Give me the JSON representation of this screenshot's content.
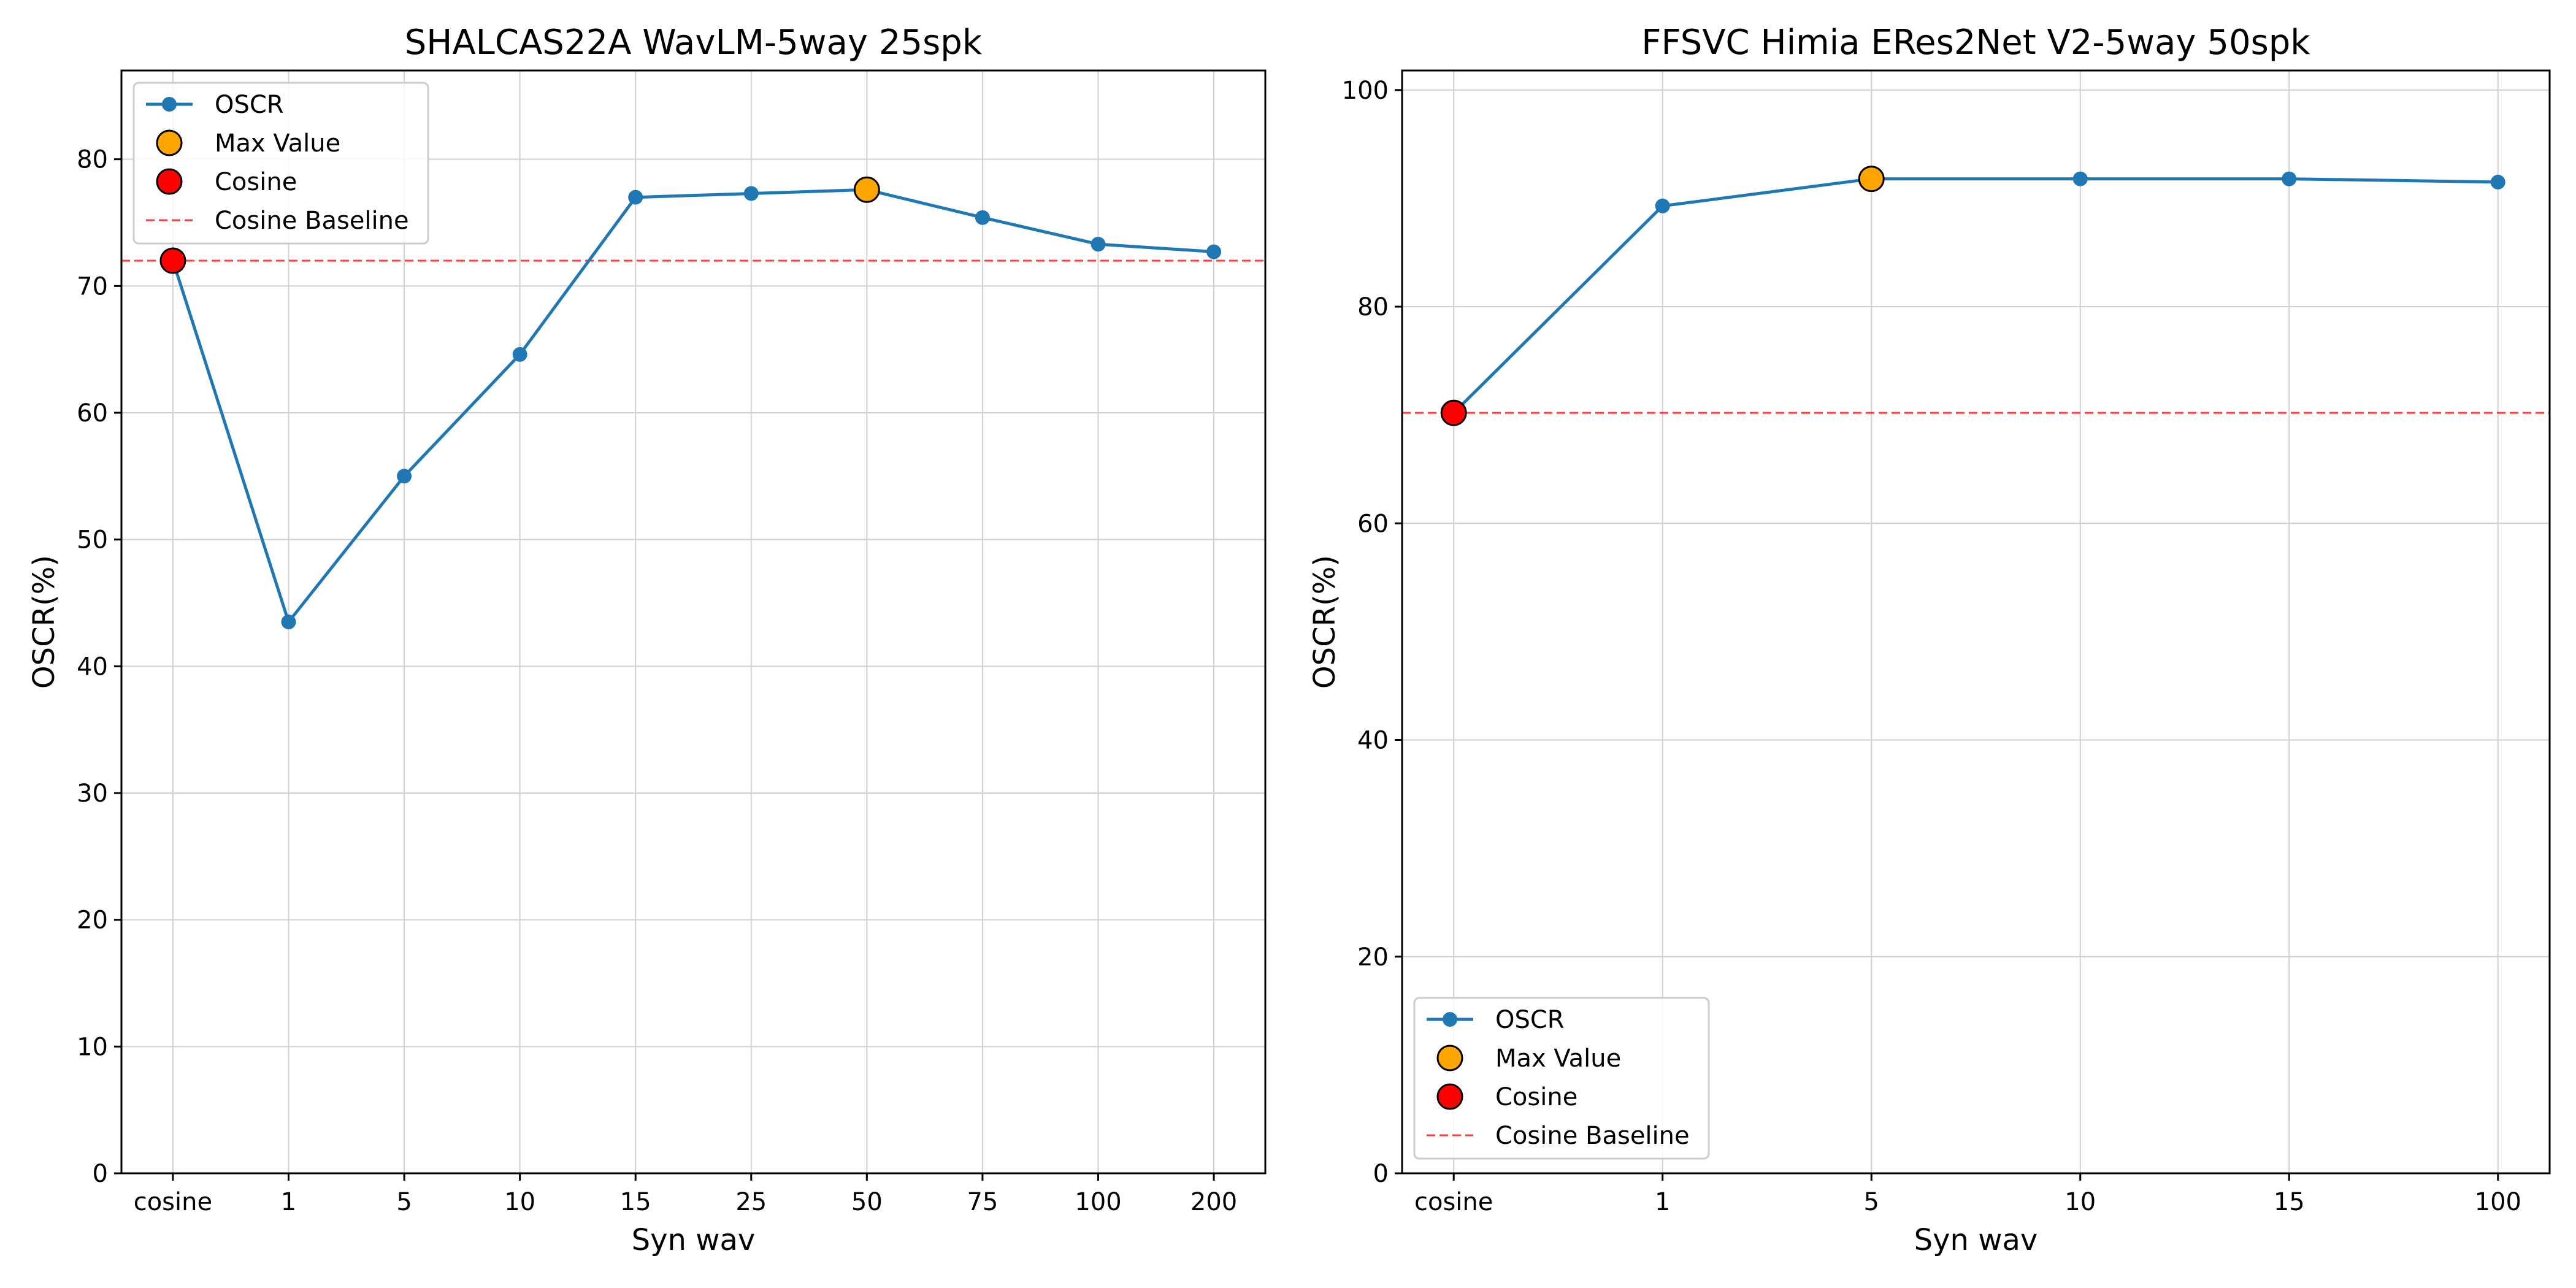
{
  "chart_data": [
    {
      "type": "line",
      "title": "SHALCAS22A WavLM-5way 25spk",
      "xlabel": "Syn wav",
      "ylabel": "OSCR(%)",
      "categories": [
        "cosine",
        "1",
        "5",
        "10",
        "15",
        "25",
        "50",
        "75",
        "100",
        "200"
      ],
      "ylim": [
        0,
        87
      ],
      "yticks": [
        0,
        10,
        20,
        30,
        40,
        50,
        60,
        70,
        80
      ],
      "grid": true,
      "legend_position": "upper-left",
      "series": [
        {
          "name": "OSCR",
          "color": "#1f77b4",
          "values": [
            72.0,
            43.5,
            55.0,
            64.6,
            77.0,
            77.3,
            77.6,
            75.4,
            73.3,
            72.7
          ]
        }
      ],
      "max_value": {
        "name": "Max Value",
        "category": "50",
        "value": 77.6,
        "color": "#ffa500"
      },
      "cosine_point": {
        "name": "Cosine",
        "category": "cosine",
        "value": 72.0,
        "color": "#ff0000"
      },
      "baseline": {
        "name": "Cosine Baseline",
        "value": 72.0,
        "color": "#ff0000"
      },
      "legend": [
        "OSCR",
        "Max Value",
        "Cosine",
        "Cosine Baseline"
      ]
    },
    {
      "type": "line",
      "title": "FFSVC Himia ERes2Net V2-5way 50spk",
      "xlabel": "Syn wav",
      "ylabel": "OSCR(%)",
      "categories": [
        "cosine",
        "1",
        "5",
        "10",
        "15",
        "100"
      ],
      "ylim": [
        0,
        101.8
      ],
      "yticks": [
        0,
        20,
        40,
        60,
        80,
        100
      ],
      "grid": true,
      "legend_position": "lower-left",
      "series": [
        {
          "name": "OSCR",
          "color": "#1f77b4",
          "values": [
            70.2,
            89.3,
            91.8,
            91.8,
            91.8,
            91.5
          ]
        }
      ],
      "max_value": {
        "name": "Max Value",
        "category": "5",
        "value": 91.8,
        "color": "#ffa500"
      },
      "cosine_point": {
        "name": "Cosine",
        "category": "cosine",
        "value": 70.2,
        "color": "#ff0000"
      },
      "baseline": {
        "name": "Cosine Baseline",
        "value": 70.2,
        "color": "#ff0000"
      },
      "legend": [
        "OSCR",
        "Max Value",
        "Cosine",
        "Cosine Baseline"
      ]
    }
  ]
}
